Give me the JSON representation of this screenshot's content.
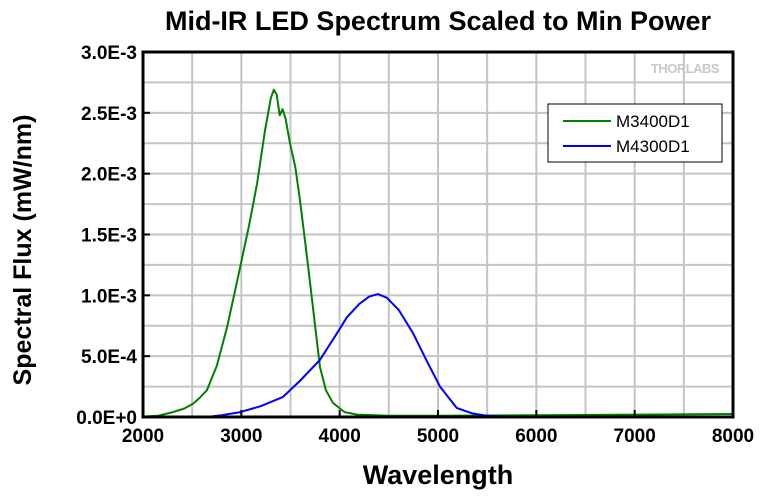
{
  "chart_data": {
    "type": "line",
    "title": "Mid-IR LED Spectrum Scaled to Min Power",
    "xlabel": "Wavelength",
    "ylabel": "Spectral Flux (mW/nm)",
    "xlim": [
      2000,
      8000
    ],
    "ylim": [
      0,
      0.003
    ],
    "xticks": [
      2000,
      3000,
      4000,
      5000,
      6000,
      7000,
      8000
    ],
    "xtick_labels": [
      "2000",
      "3000",
      "4000",
      "5000",
      "6000",
      "7000",
      "8000"
    ],
    "yticks": [
      0,
      0.0005,
      0.001,
      0.0015,
      0.002,
      0.0025,
      0.003
    ],
    "ytick_labels": [
      "0.0E+0",
      "5.0E-4",
      "1.0E-3",
      "1.5E-3",
      "2.0E-3",
      "2.5E-3",
      "3.0E-3"
    ],
    "grid": true,
    "legend_position": "top-right",
    "watermark": "THORLABS",
    "series": [
      {
        "name": "M3400D1",
        "color": "#008000",
        "x": [
          2000,
          2150,
          2305,
          2420,
          2510,
          2580,
          2650,
          2750,
          2855,
          2920,
          2987,
          3080,
          3160,
          3240,
          3300,
          3330,
          3360,
          3390,
          3420,
          3450,
          3495,
          3550,
          3597,
          3650,
          3699,
          3750,
          3800,
          3860,
          3932,
          4050,
          4177,
          4500,
          5000,
          6000,
          7000,
          8000
        ],
        "y": [
          3e-06,
          1e-05,
          4e-05,
          7e-05,
          0.00011,
          0.00016,
          0.00022,
          0.00042,
          0.00074,
          0.00098,
          0.00123,
          0.00158,
          0.00192,
          0.00235,
          0.00262,
          0.00269,
          0.00265,
          0.00248,
          0.00253,
          0.00245,
          0.00225,
          0.00205,
          0.00178,
          0.00143,
          0.0011,
          0.00075,
          0.00041,
          0.00022,
          0.000115,
          4e-05,
          2e-05,
          1e-05,
          1e-05,
          1.5e-05,
          2e-05,
          2.5e-05
        ]
      },
      {
        "name": "M4300D1",
        "color": "#0000ff",
        "x": [
          2650,
          2800,
          2990,
          3200,
          3424,
          3600,
          3800,
          3950,
          4075,
          4200,
          4300,
          4390,
          4480,
          4600,
          4746,
          4880,
          5020,
          5190,
          5350,
          5500,
          5700,
          6000
        ],
        "y": [
          0.0,
          1.5e-05,
          4e-05,
          9e-05,
          0.000165,
          0.0003,
          0.00047,
          0.00066,
          0.00082,
          0.00093,
          0.00099,
          0.00101,
          0.00098,
          0.00088,
          0.00069,
          0.00047,
          0.00025,
          7.5e-05,
          3e-05,
          1e-05,
          3e-06,
          0.0
        ]
      }
    ]
  }
}
